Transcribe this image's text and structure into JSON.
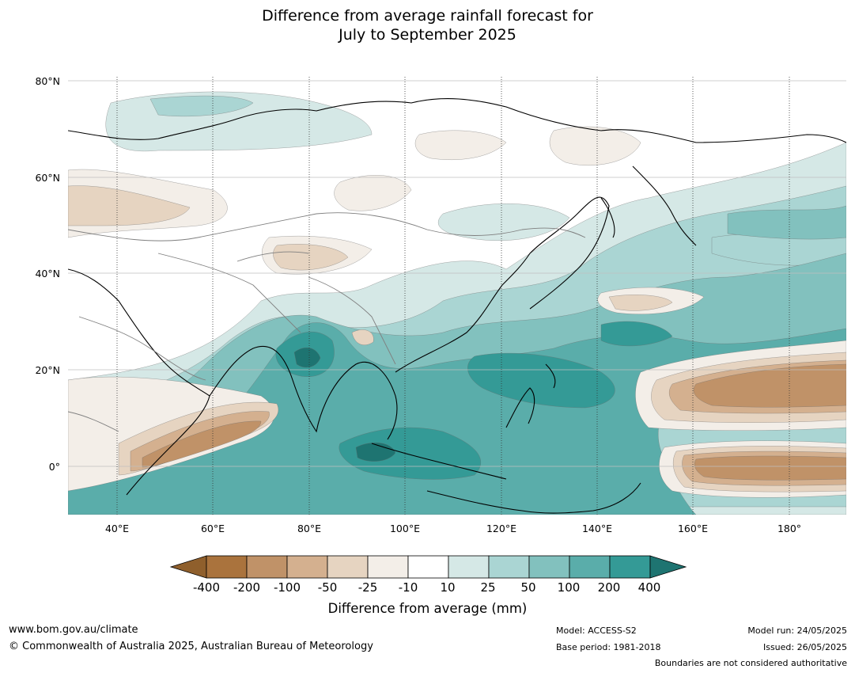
{
  "title": {
    "line1": "Difference from average rainfall forecast for",
    "line2": "July to September 2025"
  },
  "map": {
    "lat_labels": [
      "80°N",
      "60°N",
      "40°N",
      "20°N",
      "0°"
    ],
    "lon_labels": [
      "40°E",
      "60°E",
      "80°E",
      "100°E",
      "120°E",
      "140°E",
      "160°E",
      "180°"
    ],
    "colors": {
      "dry_400": "#8f5f2c",
      "dry_200": "#aa733d",
      "dry_100": "#c09268",
      "dry_50": "#d4b08f",
      "dry_25": "#e6d4c1",
      "dry_10": "#f3eee8",
      "neutral": "#ffffff",
      "wet_10": "#d5e8e6",
      "wet_25": "#aad5d3",
      "wet_50": "#82c1be",
      "wet_100": "#5aadaa",
      "wet_200": "#349a96",
      "wet_400": "#1e7471",
      "coast": "#000000",
      "border": "#7f7f7f",
      "grid": "#bfbfbf"
    }
  },
  "colorbar": {
    "title": "Difference from average (mm)",
    "ticks": [
      "-400",
      "-200",
      "-100",
      "-50",
      "-25",
      "-10",
      "10",
      "25",
      "50",
      "100",
      "200",
      "400"
    ]
  },
  "footer": {
    "website": "www.bom.gov.au/climate",
    "copyright": "© Commonwealth of Australia 2025, Australian Bureau of Meteorology",
    "model": "Model: ACCESS-S2",
    "base_period": "Base period: 1981-2018",
    "model_run": "Model run: 24/05/2025",
    "issued": "Issued: 26/05/2025",
    "disclaimer": "Boundaries are not considered authoritative"
  }
}
